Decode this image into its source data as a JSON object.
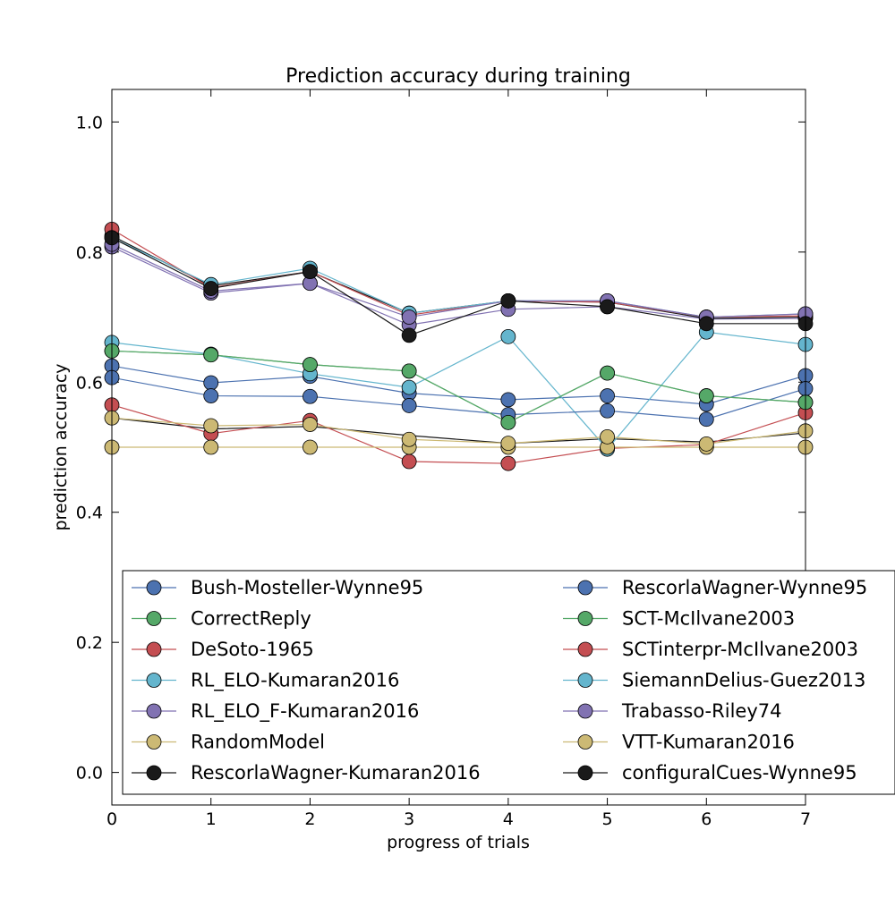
{
  "chart_data": {
    "type": "line",
    "title": "Prediction accuracy during training",
    "xlabel": "progress of trials",
    "ylabel": "prediction accuracy",
    "xlim": [
      0,
      7
    ],
    "ylim": [
      -0.05,
      1.05
    ],
    "xticks": [
      0,
      1,
      2,
      3,
      4,
      5,
      6,
      7
    ],
    "xtick_labels": [
      "0",
      "1",
      "2",
      "3",
      "4",
      "5",
      "6",
      "7"
    ],
    "yticks": [
      0.0,
      0.2,
      0.4,
      0.6,
      0.8,
      1.0
    ],
    "ytick_labels": [
      "0.0",
      "0.2",
      "0.4",
      "0.6",
      "0.8",
      "1.0"
    ],
    "grid": false,
    "legend": {
      "placement": "lower-center",
      "columns": 2
    },
    "x": [
      0,
      1,
      2,
      3,
      4,
      5,
      6,
      7
    ],
    "series": [
      {
        "name": "Bush-Mosteller-Wynne95",
        "color": "#4c72b0",
        "values": [
          0.625,
          0.599,
          0.609,
          0.583,
          0.573,
          0.579,
          0.566,
          0.61
        ]
      },
      {
        "name": "CorrectReply",
        "color": "#55a868",
        "values": [
          0.648,
          0.642,
          0.627,
          0.617,
          0.538,
          0.614,
          0.579,
          0.569
        ]
      },
      {
        "name": "DeSoto-1965",
        "color": "#c44e52",
        "values": [
          0.565,
          0.521,
          0.541,
          0.478,
          0.475,
          0.498,
          0.504,
          0.553
        ]
      },
      {
        "name": "RL_ELO-Kumaran2016",
        "color": "#64b5cd",
        "values": [
          0.661,
          0.643,
          0.613,
          0.592,
          0.67,
          0.497,
          0.677,
          0.658
        ]
      },
      {
        "name": "RL_ELO_F-Kumaran2016",
        "color": "#8172b2",
        "values": [
          0.808,
          0.737,
          0.752,
          0.688,
          0.712,
          0.716,
          0.697,
          0.698
        ]
      },
      {
        "name": "RandomModel",
        "color": "#ccb974",
        "values": [
          0.5,
          0.5,
          0.5,
          0.5,
          0.5,
          0.5,
          0.5,
          0.5
        ]
      },
      {
        "name": "RescorlaWagner-Kumaran2016",
        "color": "#1a1a1a",
        "values": [
          0.825,
          0.748,
          0.77,
          0.706,
          0.725,
          0.723,
          0.698,
          0.7
        ]
      },
      {
        "name": "RescorlaWagner-Wynne95",
        "color": "#4c72b0",
        "values": [
          0.607,
          0.579,
          0.578,
          0.564,
          0.55,
          0.556,
          0.543,
          0.59
        ]
      },
      {
        "name": "SCT-McIlvane2003",
        "color": "#55a868",
        "values": [
          0.648,
          0.642,
          0.627,
          0.617,
          0.538,
          0.614,
          0.579,
          0.569
        ]
      },
      {
        "name": "SCTinterpr-McIlvane2003",
        "color": "#c44e52",
        "values": [
          0.835,
          0.745,
          0.77,
          0.703,
          0.725,
          0.723,
          0.7,
          0.702
        ]
      },
      {
        "name": "SiemannDelius-Guez2013",
        "color": "#64b5cd",
        "values": [
          0.822,
          0.75,
          0.775,
          0.706,
          0.725,
          0.725,
          0.7,
          0.705
        ]
      },
      {
        "name": "Trabasso-Riley74",
        "color": "#8172b2",
        "values": [
          0.812,
          0.74,
          0.752,
          0.7,
          0.725,
          0.725,
          0.7,
          0.705
        ]
      },
      {
        "name": "VTT-Kumaran2016",
        "color": "#ccb974",
        "values": [
          0.545,
          0.533,
          0.535,
          0.512,
          0.506,
          0.516,
          0.505,
          0.525
        ]
      },
      {
        "name": "configuralCues-Wynne95",
        "color": "#1a1a1a",
        "values": [
          0.822,
          0.744,
          0.77,
          0.672,
          0.725,
          0.716,
          0.69,
          0.69
        ]
      }
    ],
    "extra_lines": [
      {
        "color": "#1a1a1a",
        "values": [
          0.545,
          0.528,
          0.532,
          0.518,
          0.506,
          0.513,
          0.508,
          0.522
        ]
      }
    ]
  }
}
